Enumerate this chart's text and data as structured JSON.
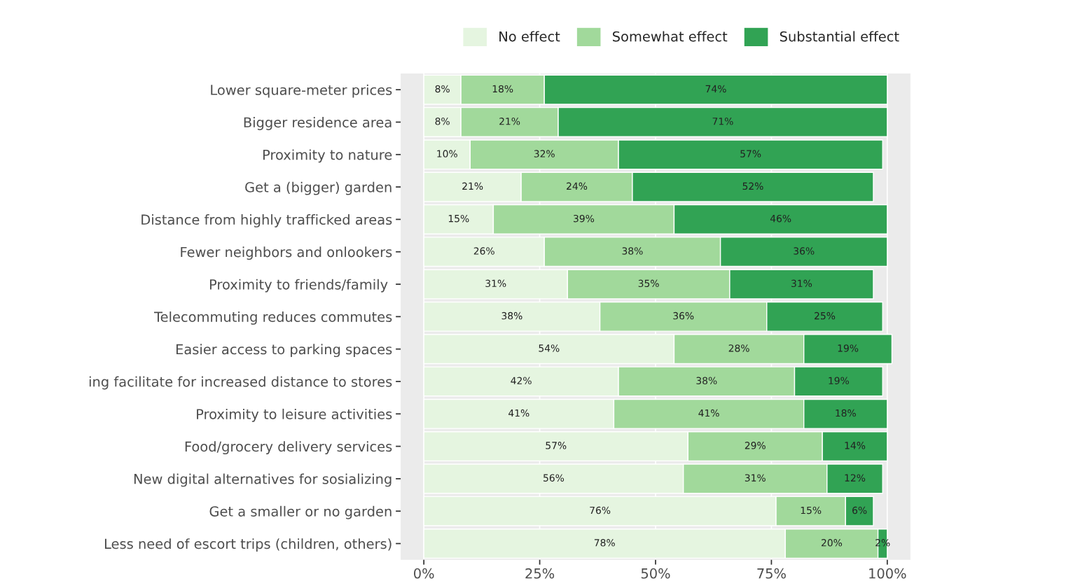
{
  "chart_data": {
    "type": "bar",
    "orientation": "horizontal",
    "stacked": true,
    "categories": [
      "Lower square-meter prices",
      "Bigger residence area",
      "Proximity to nature",
      "Get a (bigger) garden",
      "Distance from highly trafficked areas",
      "Fewer neighbors and onlookers",
      "Proximity to friends/family ",
      "Telecommuting reduces commutes",
      "Easier access to parking spaces",
      "ing facilitate for increased distance to stores",
      "Proximity to leisure activities",
      "Food/grocery delivery services",
      "New digital alternatives for sosializing",
      "Get a smaller or no garden",
      "Less need of escort trips (children, others)"
    ],
    "series": [
      {
        "name": "No effect",
        "color": "#e5f5e0",
        "values": [
          8,
          8,
          10,
          21,
          15,
          26,
          31,
          38,
          54,
          42,
          41,
          57,
          56,
          76,
          78
        ],
        "value_labels": [
          "8%",
          "8%",
          "10%",
          "21%",
          "15%",
          "26%",
          "31%",
          "38%",
          "54%",
          "42%",
          "41%",
          "57%",
          "56%",
          "76%",
          "78%"
        ]
      },
      {
        "name": "Somewhat effect",
        "color": "#a1d99b",
        "values": [
          18,
          21,
          32,
          24,
          39,
          38,
          35,
          36,
          28,
          38,
          41,
          29,
          31,
          15,
          20
        ],
        "value_labels": [
          "18%",
          "21%",
          "32%",
          "24%",
          "39%",
          "38%",
          "35%",
          "36%",
          "28%",
          "38%",
          "41%",
          "29%",
          "31%",
          "15%",
          "20%"
        ]
      },
      {
        "name": "Substantial effect",
        "color": "#31a354",
        "values": [
          74,
          71,
          57,
          52,
          46,
          36,
          31,
          25,
          19,
          19,
          18,
          14,
          12,
          6,
          2
        ],
        "value_labels": [
          "74%",
          "71%",
          "57%",
          "52%",
          "46%",
          "36%",
          "31%",
          "25%",
          "19%",
          "19%",
          "18%",
          "14%",
          "12%",
          "6%",
          "2%"
        ]
      }
    ],
    "xlim": [
      -5,
      105
    ],
    "xticks": [
      {
        "value": 0,
        "label": "0%"
      },
      {
        "value": 25,
        "label": "25%"
      },
      {
        "value": 50,
        "label": "50%"
      },
      {
        "value": 75,
        "label": "75%"
      },
      {
        "value": 100,
        "label": "100%"
      }
    ],
    "grid": "x",
    "legend": "top"
  }
}
